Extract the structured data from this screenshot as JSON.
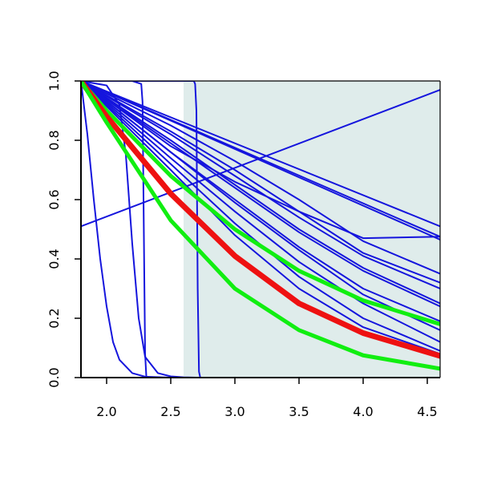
{
  "chart_data": {
    "type": "line",
    "title": "",
    "xlabel": "",
    "ylabel": "",
    "xlim": [
      1.8,
      4.6
    ],
    "ylim": [
      0.0,
      1.0
    ],
    "x_ticks": [
      "2.0",
      "2.5",
      "3.0",
      "3.5",
      "4.0",
      "4.5"
    ],
    "y_ticks": [
      "0.0",
      "0.2",
      "0.4",
      "0.6",
      "0.8",
      "1.0"
    ],
    "grid": false,
    "legend": "none",
    "shaded_region": {
      "x_from": 2.6,
      "x_to": 4.6,
      "color": "#dfeceb"
    },
    "colors": {
      "blue": "#1515dd",
      "red": "#ee1111",
      "green": "#11ee11",
      "axis": "#000000"
    },
    "series": [
      {
        "color": "blue",
        "width": 2,
        "points": [
          [
            1.8,
            0.51
          ],
          [
            4.6,
            0.97
          ]
        ]
      },
      {
        "color": "blue",
        "width": 2,
        "points": [
          [
            1.8,
            1.0
          ],
          [
            4.6,
            0.51
          ]
        ]
      },
      {
        "color": "blue",
        "width": 2,
        "points": [
          [
            1.8,
            1.0
          ],
          [
            4.6,
            0.475
          ]
        ]
      },
      {
        "color": "blue",
        "width": 2,
        "points": [
          [
            1.8,
            1.0
          ],
          [
            4.6,
            0.465
          ]
        ]
      },
      {
        "color": "blue",
        "width": 2,
        "points": [
          [
            1.8,
            1.0
          ],
          [
            2.5,
            0.85
          ],
          [
            3.0,
            0.73
          ],
          [
            3.5,
            0.6
          ],
          [
            4.0,
            0.46
          ],
          [
            4.6,
            0.35
          ]
        ]
      },
      {
        "color": "blue",
        "width": 2,
        "points": [
          [
            1.8,
            1.0
          ],
          [
            2.5,
            0.83
          ],
          [
            3.0,
            0.7
          ],
          [
            3.5,
            0.56
          ],
          [
            4.0,
            0.42
          ],
          [
            4.6,
            0.32
          ]
        ]
      },
      {
        "color": "blue",
        "width": 2,
        "points": [
          [
            1.8,
            1.0
          ],
          [
            2.5,
            0.82
          ],
          [
            3.0,
            0.68
          ],
          [
            3.5,
            0.54
          ],
          [
            4.0,
            0.41
          ],
          [
            4.6,
            0.3
          ]
        ]
      },
      {
        "color": "blue",
        "width": 2,
        "points": [
          [
            1.8,
            1.0
          ],
          [
            2.5,
            0.8
          ],
          [
            3.0,
            0.65
          ],
          [
            3.5,
            0.5
          ],
          [
            4.0,
            0.37
          ],
          [
            4.6,
            0.25
          ]
        ]
      },
      {
        "color": "blue",
        "width": 2,
        "points": [
          [
            1.8,
            1.0
          ],
          [
            2.5,
            0.79
          ],
          [
            3.0,
            0.64
          ],
          [
            3.5,
            0.49
          ],
          [
            4.0,
            0.36
          ],
          [
            4.6,
            0.24
          ]
        ]
      },
      {
        "color": "blue",
        "width": 2,
        "points": [
          [
            1.8,
            1.0
          ],
          [
            2.5,
            0.76
          ],
          [
            3.0,
            0.6
          ],
          [
            3.5,
            0.44
          ],
          [
            4.0,
            0.3
          ],
          [
            4.6,
            0.19
          ]
        ]
      },
      {
        "color": "blue",
        "width": 2,
        "points": [
          [
            1.8,
            1.0
          ],
          [
            2.5,
            0.76
          ],
          [
            3.0,
            0.59
          ],
          [
            3.5,
            0.43
          ],
          [
            4.0,
            0.28
          ],
          [
            4.6,
            0.16
          ]
        ]
      },
      {
        "color": "blue",
        "width": 2,
        "points": [
          [
            1.8,
            1.0
          ],
          [
            2.5,
            0.74
          ],
          [
            3.0,
            0.56
          ],
          [
            3.5,
            0.39
          ],
          [
            4.0,
            0.25
          ],
          [
            4.6,
            0.12
          ]
        ]
      },
      {
        "color": "blue",
        "width": 2,
        "points": [
          [
            1.8,
            1.0
          ],
          [
            2.5,
            0.72
          ],
          [
            3.0,
            0.52
          ],
          [
            3.5,
            0.34
          ],
          [
            4.0,
            0.2
          ],
          [
            4.6,
            0.09
          ]
        ]
      },
      {
        "color": "blue",
        "width": 2,
        "points": [
          [
            1.8,
            1.0
          ],
          [
            2.5,
            0.7
          ],
          [
            3.0,
            0.48
          ],
          [
            3.5,
            0.3
          ],
          [
            4.0,
            0.17
          ],
          [
            4.6,
            0.08
          ]
        ]
      },
      {
        "color": "blue",
        "width": 2,
        "points": [
          [
            1.8,
            1.0
          ],
          [
            2.5,
            0.78
          ],
          [
            3.0,
            0.66
          ],
          [
            3.5,
            0.56
          ],
          [
            4.0,
            0.47
          ],
          [
            4.6,
            0.475
          ]
        ]
      },
      {
        "color": "blue",
        "width": 2,
        "points": [
          [
            1.8,
            1.0
          ],
          [
            1.85,
            0.82
          ],
          [
            1.9,
            0.6
          ],
          [
            1.95,
            0.4
          ],
          [
            2.0,
            0.24
          ],
          [
            2.05,
            0.12
          ],
          [
            2.1,
            0.06
          ],
          [
            2.2,
            0.015
          ],
          [
            2.3,
            0.003
          ],
          [
            2.5,
            0.0
          ],
          [
            4.6,
            0.0
          ]
        ]
      },
      {
        "color": "blue",
        "width": 2,
        "points": [
          [
            1.8,
            1.0
          ],
          [
            2.0,
            0.985
          ],
          [
            2.1,
            0.92
          ],
          [
            2.15,
            0.75
          ],
          [
            2.2,
            0.45
          ],
          [
            2.25,
            0.2
          ],
          [
            2.3,
            0.07
          ],
          [
            2.4,
            0.015
          ],
          [
            2.5,
            0.004
          ],
          [
            2.6,
            0.001
          ],
          [
            2.7,
            0.0
          ],
          [
            4.6,
            0.0
          ]
        ]
      },
      {
        "color": "blue",
        "width": 2,
        "points": [
          [
            1.8,
            1.0
          ],
          [
            2.2,
            1.0
          ],
          [
            2.27,
            0.99
          ],
          [
            2.28,
            0.93
          ],
          [
            2.29,
            0.5
          ],
          [
            2.3,
            0.08
          ],
          [
            2.31,
            0.0
          ],
          [
            4.6,
            0.0
          ]
        ]
      },
      {
        "color": "blue",
        "width": 2,
        "points": [
          [
            1.8,
            1.0
          ],
          [
            2.68,
            1.0
          ],
          [
            2.69,
            0.99
          ],
          [
            2.7,
            0.9
          ],
          [
            2.71,
            0.3
          ],
          [
            2.72,
            0.02
          ],
          [
            2.73,
            0.0
          ],
          [
            4.6,
            0.0
          ]
        ]
      },
      {
        "color": "green",
        "width": 5,
        "points": [
          [
            1.8,
            1.0
          ],
          [
            2.0,
            0.9
          ],
          [
            2.5,
            0.68
          ],
          [
            3.0,
            0.5
          ],
          [
            3.5,
            0.36
          ],
          [
            4.0,
            0.26
          ],
          [
            4.6,
            0.18
          ]
        ]
      },
      {
        "color": "red",
        "width": 7,
        "points": [
          [
            1.8,
            1.0
          ],
          [
            2.0,
            0.88
          ],
          [
            2.5,
            0.62
          ],
          [
            3.0,
            0.41
          ],
          [
            3.5,
            0.25
          ],
          [
            4.0,
            0.15
          ],
          [
            4.6,
            0.073
          ]
        ]
      },
      {
        "color": "green",
        "width": 5,
        "points": [
          [
            1.8,
            1.0
          ],
          [
            2.0,
            0.86
          ],
          [
            2.5,
            0.53
          ],
          [
            3.0,
            0.3
          ],
          [
            3.5,
            0.16
          ],
          [
            4.0,
            0.075
          ],
          [
            4.6,
            0.03
          ]
        ]
      }
    ]
  }
}
